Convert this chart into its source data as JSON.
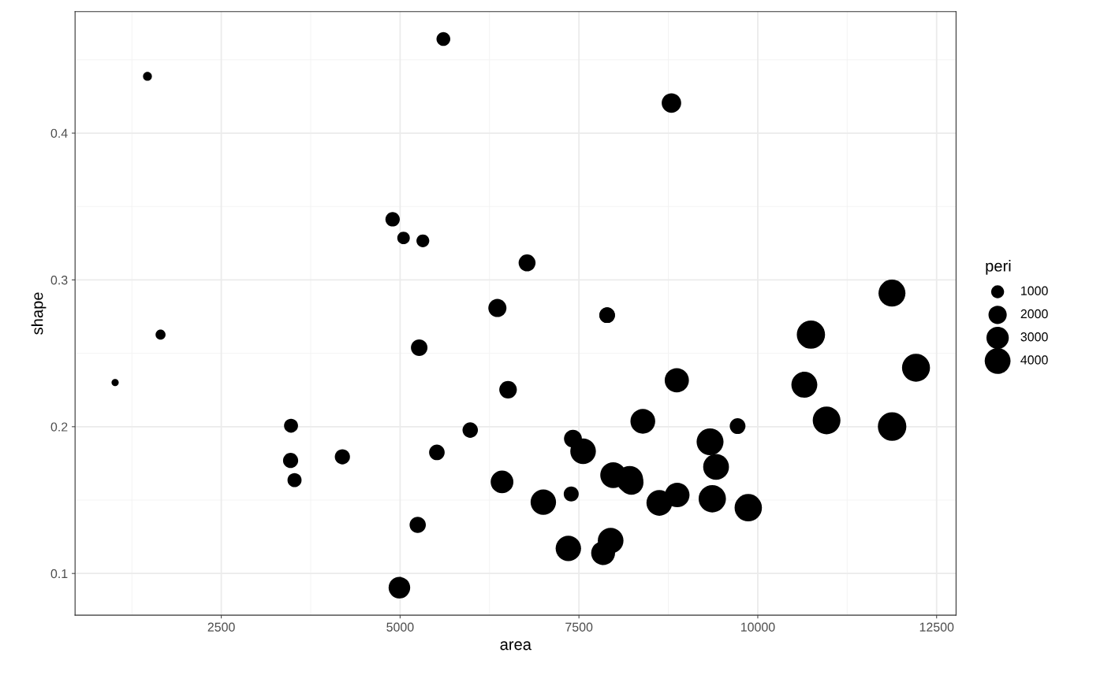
{
  "chart_data": {
    "type": "bubble",
    "xlabel": "area",
    "ylabel": "shape",
    "legend_title": "peri",
    "color": "#000000",
    "marker": "circle",
    "grid": true,
    "x": [
      4990,
      7002,
      7558,
      7352,
      7943,
      7979,
      9333,
      8209,
      8393,
      6425,
      9364,
      8624,
      10651,
      8868,
      9417,
      8874,
      10962,
      10743,
      11878,
      9867,
      7838,
      11876,
      12212,
      8233,
      6360,
      4193,
      7416,
      5246,
      6509,
      4895,
      6775,
      7894,
      5980,
      5318,
      7392,
      7894,
      3469,
      1468,
      3524,
      5267,
      5048,
      1016,
      5605,
      8793,
      3475,
      1651,
      5514,
      9718
    ],
    "values": [
      0.0903,
      0.1486,
      0.1833,
      0.1171,
      0.1224,
      0.167,
      0.1897,
      0.1641,
      0.2037,
      0.1624,
      0.1509,
      0.1481,
      0.2286,
      0.2316,
      0.1726,
      0.1535,
      0.2043,
      0.2627,
      0.2001,
      0.1448,
      0.1139,
      0.291,
      0.2401,
      0.1619,
      0.2809,
      0.1795,
      0.1918,
      0.1331,
      0.2252,
      0.3413,
      0.3116,
      0.276,
      0.1977,
      0.3266,
      0.1542,
      0.276,
      0.177,
      0.4387,
      0.1636,
      0.2538,
      0.3286,
      0.2301,
      0.4641,
      0.4205,
      0.2007,
      0.2627,
      0.1825,
      0.2004
    ],
    "sizes": [
      2792,
      3893,
      3931,
      3869,
      3949,
      4010,
      4346,
      4345,
      3682,
      3099,
      4480,
      3986,
      4037,
      3518,
      3999,
      3629,
      4609,
      4788,
      4864,
      4479,
      3429,
      4353,
      4698,
      3518,
      1977,
      1379,
      1916,
      1585,
      1851,
      1240,
      1728,
      1461,
      1427,
      990,
      1351,
      1461,
      1377,
      476,
      1189,
      1645,
      942,
      309,
      1146,
      2280,
      1174,
      598,
      1456,
      1486
    ],
    "size_legend": [
      1000,
      2000,
      3000,
      4000
    ],
    "xlim": [
      456,
      12772
    ],
    "ylim": [
      0.0716,
      0.4828
    ],
    "xticks": [
      2500,
      5000,
      7500,
      10000,
      12500
    ],
    "yticks": [
      0.1,
      0.2,
      0.3,
      0.4
    ]
  }
}
